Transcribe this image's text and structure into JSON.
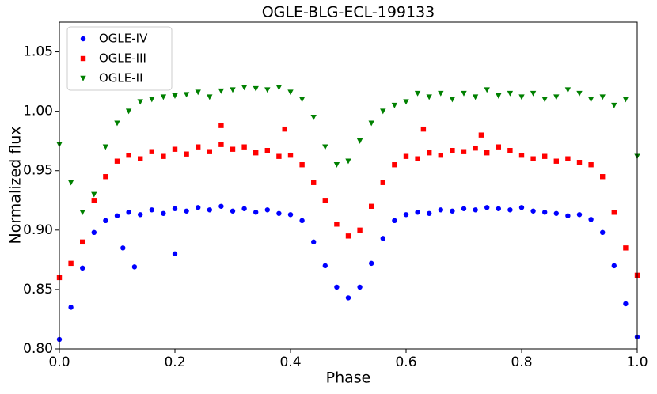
{
  "chart_data": {
    "type": "scatter",
    "title": "OGLE-BLG-ECL-199133",
    "xlabel": "Phase",
    "ylabel": "Normalized flux",
    "xlim": [
      0,
      1
    ],
    "ylim": [
      0.8,
      1.075
    ],
    "xticks": [
      {
        "value": 0,
        "label": "0.0"
      },
      0.2,
      0.4,
      0.6,
      0.8,
      {
        "value": 1,
        "label": "1.0"
      }
    ],
    "yticks": [
      {
        "value": 0.8,
        "label": "0.80"
      },
      0.85,
      {
        "value": 0.9,
        "label": "0.90"
      },
      0.95,
      {
        "value": 1,
        "label": "1.00"
      },
      1.05
    ],
    "grid": false,
    "legend": "upper left",
    "series": [
      {
        "name": "OGLE-IV",
        "color": "#0000ff",
        "marker": "o",
        "x": [
          0,
          0.02,
          0.04,
          0.06,
          0.08,
          0.1,
          0.12,
          0.14,
          0.16,
          0.18,
          0.2,
          0.22,
          0.24,
          0.26,
          0.28,
          0.3,
          0.32,
          0.34,
          0.36,
          0.38,
          0.4,
          0.42,
          0.44,
          0.46,
          0.48,
          0.5,
          0.52,
          0.54,
          0.56,
          0.58,
          0.6,
          0.62,
          0.64,
          0.66,
          0.68,
          0.7,
          0.72,
          0.74,
          0.76,
          0.78,
          0.8,
          0.82,
          0.84,
          0.86,
          0.88,
          0.9,
          0.92,
          0.94,
          0.96,
          0.98,
          1,
          0.13,
          0.2,
          0.11
        ],
        "values": [
          0.808,
          0.835,
          0.868,
          0.898,
          0.908,
          0.912,
          0.915,
          0.913,
          0.917,
          0.914,
          0.918,
          0.916,
          0.919,
          0.917,
          0.92,
          0.916,
          0.918,
          0.915,
          0.917,
          0.914,
          0.913,
          0.908,
          0.89,
          0.87,
          0.852,
          0.843,
          0.852,
          0.872,
          0.893,
          0.908,
          0.913,
          0.915,
          0.914,
          0.917,
          0.916,
          0.918,
          0.917,
          0.919,
          0.918,
          0.917,
          0.919,
          0.916,
          0.915,
          0.914,
          0.912,
          0.913,
          0.909,
          0.898,
          0.87,
          0.838,
          0.81,
          0.869,
          0.88,
          0.885
        ]
      },
      {
        "name": "OGLE-III",
        "color": "#ff0000",
        "marker": "s",
        "x": [
          0,
          0.02,
          0.04,
          0.06,
          0.08,
          0.1,
          0.12,
          0.14,
          0.16,
          0.18,
          0.2,
          0.22,
          0.24,
          0.26,
          0.28,
          0.3,
          0.32,
          0.34,
          0.36,
          0.38,
          0.4,
          0.42,
          0.44,
          0.46,
          0.48,
          0.5,
          0.52,
          0.54,
          0.56,
          0.58,
          0.6,
          0.62,
          0.64,
          0.66,
          0.68,
          0.7,
          0.72,
          0.74,
          0.76,
          0.78,
          0.8,
          0.82,
          0.84,
          0.86,
          0.88,
          0.9,
          0.92,
          0.94,
          0.96,
          0.98,
          1,
          0.28,
          0.39,
          0.73,
          0.63
        ],
        "values": [
          0.86,
          0.872,
          0.89,
          0.925,
          0.945,
          0.958,
          0.963,
          0.96,
          0.966,
          0.962,
          0.968,
          0.964,
          0.97,
          0.966,
          0.972,
          0.968,
          0.97,
          0.965,
          0.967,
          0.962,
          0.963,
          0.955,
          0.94,
          0.925,
          0.905,
          0.895,
          0.9,
          0.92,
          0.94,
          0.955,
          0.962,
          0.96,
          0.965,
          0.963,
          0.967,
          0.966,
          0.969,
          0.965,
          0.97,
          0.967,
          0.963,
          0.96,
          0.962,
          0.958,
          0.96,
          0.957,
          0.955,
          0.945,
          0.915,
          0.885,
          0.862,
          0.988,
          0.985,
          0.98,
          0.985
        ]
      },
      {
        "name": "OGLE-II",
        "color": "#008000",
        "marker": "v",
        "x": [
          0,
          0.02,
          0.04,
          0.06,
          0.08,
          0.1,
          0.12,
          0.14,
          0.16,
          0.18,
          0.2,
          0.22,
          0.24,
          0.26,
          0.28,
          0.3,
          0.32,
          0.34,
          0.36,
          0.38,
          0.4,
          0.42,
          0.44,
          0.46,
          0.48,
          0.5,
          0.52,
          0.54,
          0.56,
          0.58,
          0.6,
          0.62,
          0.64,
          0.66,
          0.68,
          0.7,
          0.72,
          0.74,
          0.76,
          0.78,
          0.8,
          0.82,
          0.84,
          0.86,
          0.88,
          0.9,
          0.92,
          0.94,
          0.96,
          0.98,
          1
        ],
        "values": [
          0.972,
          0.94,
          0.915,
          0.93,
          0.97,
          0.99,
          1,
          1.008,
          1.01,
          1.012,
          1.013,
          1.014,
          1.016,
          1.012,
          1.017,
          1.018,
          1.02,
          1.019,
          1.018,
          1.02,
          1.016,
          1.01,
          0.995,
          0.97,
          0.955,
          0.958,
          0.975,
          0.99,
          1,
          1.005,
          1.008,
          1.015,
          1.012,
          1.015,
          1.01,
          1.015,
          1.012,
          1.018,
          1.013,
          1.015,
          1.012,
          1.015,
          1.01,
          1.012,
          1.018,
          1.015,
          1.01,
          1.012,
          1.005,
          1.01,
          0.962
        ]
      }
    ]
  }
}
